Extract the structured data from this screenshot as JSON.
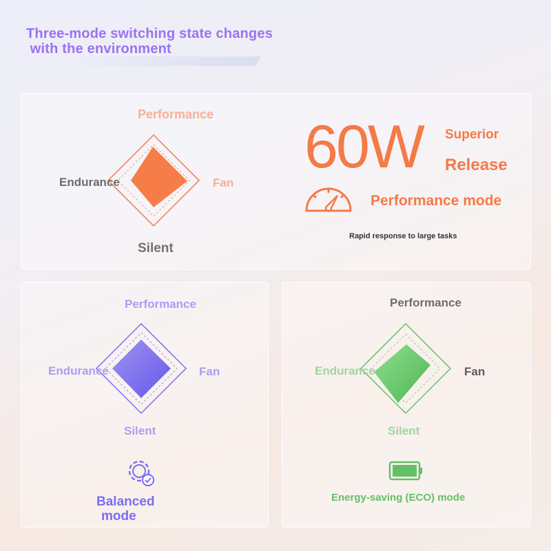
{
  "title": {
    "line1": "Three-mode switching state changes",
    "line2": " with the environment"
  },
  "colors": {
    "performance": "#f47a47",
    "balanced": "#7b6cef",
    "eco": "#63c066",
    "title": "#9a72f2"
  },
  "performance_card": {
    "axes": {
      "top": "Performance",
      "left": "Endurance",
      "right": "Fan",
      "bottom": "Silent"
    },
    "power": "60W",
    "superior": "Superior",
    "release": "Release",
    "mode": "Performance mode",
    "icon": "speedometer-icon",
    "description": "Rapid response to large tasks"
  },
  "balanced_card": {
    "axes": {
      "top": "Performance",
      "left": "Endurance",
      "right": "Fan",
      "bottom": "Silent"
    },
    "icon": "gear-check-icon",
    "mode_line1": "Balanced",
    "mode_line2": "mode"
  },
  "eco_card": {
    "axes": {
      "top": "Performance",
      "left": "Endurance",
      "right": "Fan",
      "bottom": "Silent"
    },
    "icon": "battery-icon",
    "mode": "Energy-saving (ECO) mode"
  }
}
